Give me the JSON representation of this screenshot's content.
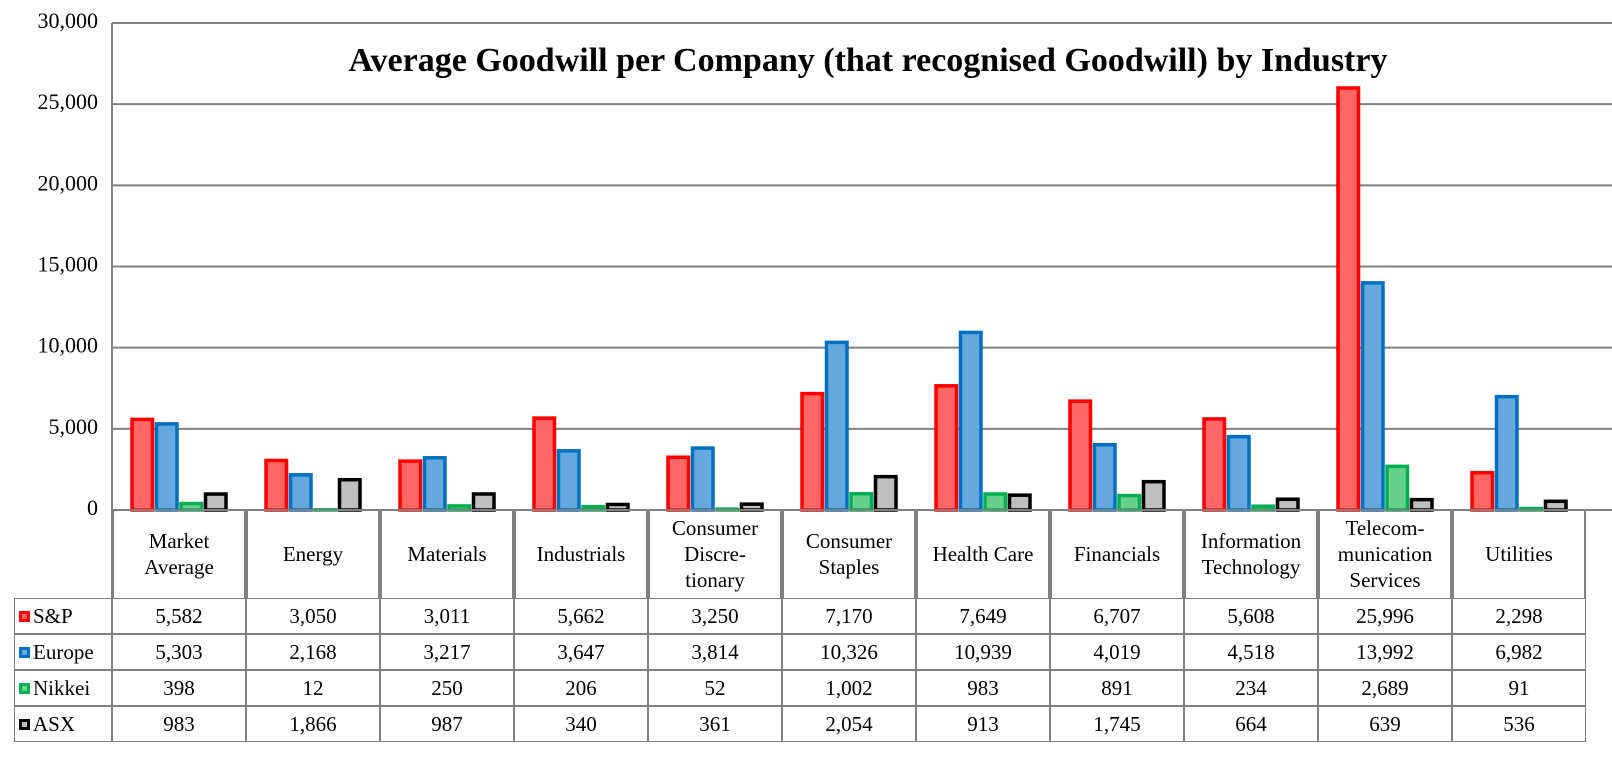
{
  "chart_data": {
    "type": "bar",
    "title": "Average Goodwill per Company (that recognised Goodwill) by Industry",
    "categories": [
      "Market\nAverage",
      "Energy",
      "Materials",
      "Industrials",
      "Consumer\nDiscre-\ntionary",
      "Consumer\nStaples",
      "Health Care",
      "Financials",
      "Information\nTechnology",
      "Telecom-\nmunication\nServices",
      "Utilities"
    ],
    "series": [
      {
        "name": "S&P",
        "color": "#ff0000",
        "fill": "#ff6666",
        "values": [
          5582,
          3050,
          3011,
          5662,
          3250,
          7170,
          7649,
          6707,
          5608,
          25996,
          2298
        ],
        "value_labels": [
          "5,582",
          "3,050",
          "3,011",
          "5,662",
          "3,250",
          "7,170",
          "7,649",
          "6,707",
          "5,608",
          "25,996",
          "2,298"
        ]
      },
      {
        "name": "Europe",
        "color": "#0070c0",
        "fill": "#66a8dc",
        "values": [
          5303,
          2168,
          3217,
          3647,
          3814,
          10326,
          10939,
          4019,
          4518,
          13992,
          6982
        ],
        "value_labels": [
          "5,303",
          "2,168",
          "3,217",
          "3,647",
          "3,814",
          "10,326",
          "10,939",
          "4,019",
          "4,518",
          "13,992",
          "6,982"
        ]
      },
      {
        "name": "Nikkei",
        "color": "#00b050",
        "fill": "#66d08c",
        "values": [
          398,
          12,
          250,
          206,
          52,
          1002,
          983,
          891,
          234,
          2689,
          91
        ],
        "value_labels": [
          "398",
          "12",
          "250",
          "206",
          "52",
          "1,002",
          "983",
          "891",
          "234",
          "2,689",
          "91"
        ]
      },
      {
        "name": "ASX",
        "color": "#000000",
        "fill": "#bfbfbf",
        "values": [
          983,
          1866,
          987,
          340,
          361,
          2054,
          913,
          1745,
          664,
          639,
          536
        ],
        "value_labels": [
          "983",
          "1,866",
          "987",
          "340",
          "361",
          "2,054",
          "913",
          "1,745",
          "664",
          "639",
          "536"
        ]
      }
    ],
    "ylim": [
      0,
      30000
    ],
    "yticks": [
      0,
      {
        "value": 5000,
        "label": "5,000"
      },
      {
        "value": 10000,
        "label": "10,000"
      },
      {
        "value": 15000,
        "label": "15,000"
      },
      {
        "value": 20000,
        "label": "20,000"
      },
      {
        "value": 25000,
        "label": "25,000"
      },
      {
        "value": 30000,
        "label": "30,000"
      }
    ],
    "grid": true
  }
}
